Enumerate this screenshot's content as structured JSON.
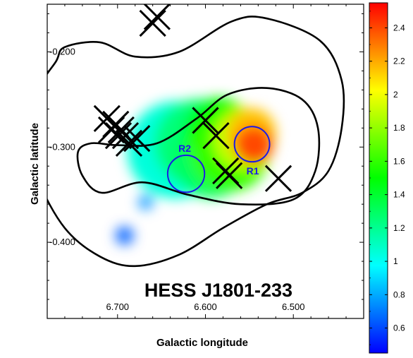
{
  "chart_data": {
    "type": "heatmap",
    "title": "HESS J1801-233",
    "xlabel": "Galactic longitude",
    "ylabel": "Galactic latitude",
    "xlim": [
      6.78,
      6.42
    ],
    "ylim": [
      -0.48,
      -0.15
    ],
    "x_ticks": [
      {
        "value": 6.7,
        "label": "6.700"
      },
      {
        "value": 6.6,
        "label": "6.600"
      },
      {
        "value": 6.5,
        "label": "6.500"
      }
    ],
    "y_ticks": [
      {
        "value": -0.2,
        "label": "-0.200"
      },
      {
        "value": -0.3,
        "label": "-0.300"
      },
      {
        "value": -0.4,
        "label": "-0.400"
      }
    ],
    "colorbar": {
      "range": [
        0.45,
        2.55
      ],
      "ticks": [
        "0.6",
        "0.8",
        "1",
        "1.2",
        "1.4",
        "1.6",
        "1.8",
        "2",
        "2.2",
        "2.4"
      ],
      "colors": [
        "#0000ff",
        "#00ffff",
        "#00ff00",
        "#ffff00",
        "#ff0000"
      ]
    },
    "map_blobs": [
      {
        "l": 6.634,
        "b": -0.303,
        "r": 0.055,
        "v": 1.05
      },
      {
        "l": 6.608,
        "b": -0.296,
        "r": 0.05,
        "v": 1.25
      },
      {
        "l": 6.593,
        "b": -0.312,
        "r": 0.045,
        "v": 1.3
      },
      {
        "l": 6.585,
        "b": -0.285,
        "r": 0.04,
        "v": 1.5
      },
      {
        "l": 6.572,
        "b": -0.305,
        "r": 0.045,
        "v": 1.6
      },
      {
        "l": 6.556,
        "b": -0.292,
        "r": 0.035,
        "v": 1.9
      },
      {
        "l": 6.548,
        "b": -0.285,
        "r": 0.028,
        "v": 2.15
      },
      {
        "l": 6.545,
        "b": -0.298,
        "r": 0.022,
        "v": 2.4
      },
      {
        "l": 6.668,
        "b": -0.358,
        "r": 0.008,
        "v": 0.75
      },
      {
        "l": 6.692,
        "b": -0.393,
        "r": 0.01,
        "v": 0.65
      }
    ],
    "regions": [
      {
        "name": "R1",
        "l": 6.547,
        "b": -0.297,
        "r": 0.02
      },
      {
        "name": "R2",
        "l": 6.622,
        "b": -0.328,
        "r": 0.021
      }
    ],
    "crosses": [
      {
        "l": 6.66,
        "b": -0.17
      },
      {
        "l": 6.655,
        "b": -0.163
      },
      {
        "l": 6.712,
        "b": -0.27
      },
      {
        "l": 6.702,
        "b": -0.276
      },
      {
        "l": 6.696,
        "b": -0.282
      },
      {
        "l": 6.707,
        "b": -0.282
      },
      {
        "l": 6.699,
        "b": -0.288
      },
      {
        "l": 6.691,
        "b": -0.288
      },
      {
        "l": 6.687,
        "b": -0.296
      },
      {
        "l": 6.678,
        "b": -0.291
      },
      {
        "l": 6.6,
        "b": -0.272
      },
      {
        "l": 6.588,
        "b": -0.288
      },
      {
        "l": 6.577,
        "b": -0.325
      },
      {
        "l": 6.573,
        "b": -0.33
      },
      {
        "l": 6.517,
        "b": -0.333
      }
    ],
    "contours": [
      {
        "level": "outer",
        "points": [
          [
            6.76,
            -0.195
          ],
          [
            6.72,
            -0.19
          ],
          [
            6.68,
            -0.205
          ],
          [
            6.63,
            -0.2
          ],
          [
            6.57,
            -0.168
          ],
          [
            6.53,
            -0.165
          ],
          [
            6.47,
            -0.188
          ],
          [
            6.445,
            -0.23
          ],
          [
            6.445,
            -0.28
          ],
          [
            6.46,
            -0.325
          ],
          [
            6.49,
            -0.348
          ],
          [
            6.53,
            -0.36
          ],
          [
            6.58,
            -0.385
          ],
          [
            6.63,
            -0.413
          ],
          [
            6.68,
            -0.425
          ],
          [
            6.72,
            -0.415
          ],
          [
            6.76,
            -0.385
          ],
          [
            6.79,
            -0.335
          ],
          [
            6.8,
            -0.29
          ],
          [
            6.79,
            -0.24
          ],
          [
            6.77,
            -0.21
          ]
        ]
      },
      {
        "level": "inner",
        "points": [
          [
            6.745,
            -0.305
          ],
          [
            6.74,
            -0.33
          ],
          [
            6.718,
            -0.348
          ],
          [
            6.672,
            -0.337
          ],
          [
            6.62,
            -0.35
          ],
          [
            6.56,
            -0.36
          ],
          [
            6.5,
            -0.355
          ],
          [
            6.475,
            -0.325
          ],
          [
            6.472,
            -0.28
          ],
          [
            6.49,
            -0.25
          ],
          [
            6.53,
            -0.238
          ],
          [
            6.575,
            -0.245
          ],
          [
            6.61,
            -0.27
          ],
          [
            6.655,
            -0.296
          ],
          [
            6.7,
            -0.298
          ],
          [
            6.73,
            -0.296
          ]
        ]
      }
    ]
  }
}
